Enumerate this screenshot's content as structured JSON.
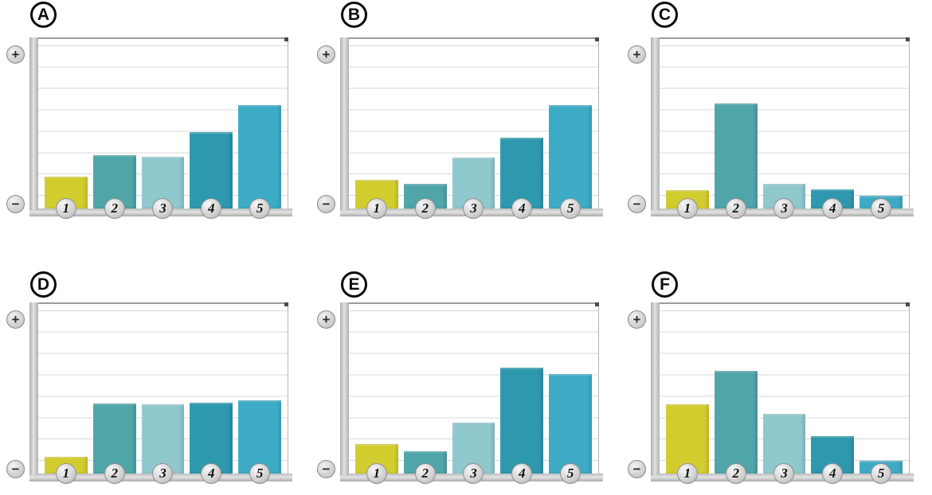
{
  "colors": {
    "bar_colors": [
      "#d2cd2e",
      "#4fa5a8",
      "#8fc8cd",
      "#2e98ae",
      "#3dabc6"
    ],
    "grid_line": "#d8d8d8",
    "axis_bar": "#c6c6c6",
    "plot_background": "#ffffff",
    "page_background": "#ffffff",
    "label_circle_border": "#0b0b0b",
    "number_coin": "#cdcdcd"
  },
  "axis": {
    "plus": "+",
    "minus": "−"
  },
  "chart_data": [
    {
      "type": "bar",
      "panel": "A",
      "categories": [
        "1",
        "2",
        "3",
        "4",
        "5"
      ],
      "values": [
        1.5,
        2.5,
        2.45,
        3.6,
        4.9
      ],
      "ylim": [
        0,
        8
      ],
      "grid": true,
      "gridline_intervals": 8,
      "ylabel_top_symbol": "+",
      "ylabel_bottom_symbol": "−",
      "value_units": "gridline-intervals",
      "xlabel": "",
      "ylabel": ""
    },
    {
      "type": "bar",
      "panel": "B",
      "categories": [
        "1",
        "2",
        "3",
        "4",
        "5"
      ],
      "values": [
        1.35,
        1.15,
        2.4,
        3.35,
        4.9
      ],
      "ylim": [
        0,
        8
      ],
      "grid": true,
      "gridline_intervals": 8,
      "ylabel_top_symbol": "+",
      "ylabel_bottom_symbol": "−",
      "value_units": "gridline-intervals",
      "xlabel": "",
      "ylabel": ""
    },
    {
      "type": "bar",
      "panel": "C",
      "categories": [
        "1",
        "2",
        "3",
        "4",
        "5"
      ],
      "values": [
        0.85,
        4.95,
        1.15,
        0.9,
        0.6
      ],
      "ylim": [
        0,
        8
      ],
      "grid": true,
      "gridline_intervals": 8,
      "ylabel_top_symbol": "+",
      "ylabel_bottom_symbol": "−",
      "value_units": "gridline-intervals",
      "xlabel": "",
      "ylabel": ""
    },
    {
      "type": "bar",
      "panel": "D",
      "categories": [
        "1",
        "2",
        "3",
        "4",
        "5"
      ],
      "values": [
        0.8,
        3.3,
        3.25,
        3.35,
        3.45
      ],
      "ylim": [
        0,
        8
      ],
      "grid": true,
      "gridline_intervals": 8,
      "ylabel_top_symbol": "+",
      "ylabel_bottom_symbol": "−",
      "value_units": "gridline-intervals",
      "xlabel": "",
      "ylabel": ""
    },
    {
      "type": "bar",
      "panel": "E",
      "categories": [
        "1",
        "2",
        "3",
        "4",
        "5"
      ],
      "values": [
        1.4,
        1.05,
        2.4,
        5.0,
        4.7
      ],
      "ylim": [
        0,
        8
      ],
      "grid": true,
      "gridline_intervals": 8,
      "ylabel_top_symbol": "+",
      "ylabel_bottom_symbol": "−",
      "value_units": "gridline-intervals",
      "xlabel": "",
      "ylabel": ""
    },
    {
      "type": "bar",
      "panel": "F",
      "categories": [
        "1",
        "2",
        "3",
        "4",
        "5"
      ],
      "values": [
        3.25,
        4.85,
        2.8,
        1.75,
        0.6
      ],
      "ylim": [
        0,
        8
      ],
      "grid": true,
      "gridline_intervals": 8,
      "ylabel_top_symbol": "+",
      "ylabel_bottom_symbol": "−",
      "value_units": "gridline-intervals",
      "xlabel": "",
      "ylabel": ""
    }
  ]
}
